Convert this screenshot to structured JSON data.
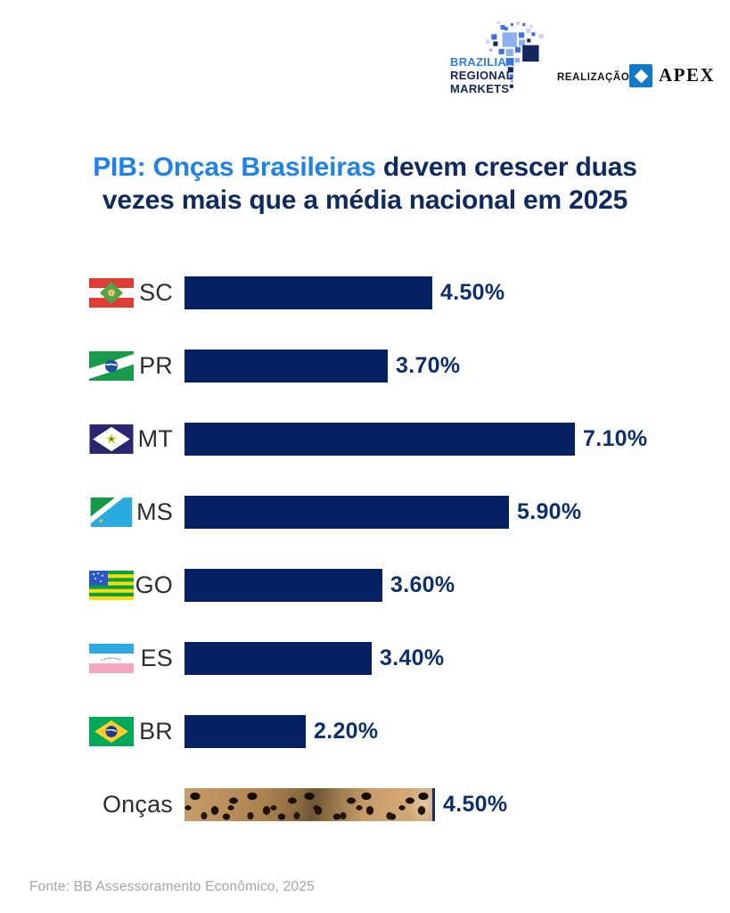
{
  "header": {
    "brand": {
      "line1": "BRAZILIAN",
      "line2": "REGIONAL",
      "line3": "MARKETS"
    },
    "realization_label": "REALIZAÇÃO",
    "apex_label": "APEX"
  },
  "title": {
    "highlight": "PIB: Onças Brasileiras",
    "rest": " devem crescer duas vezes mais que a média nacional em 2025"
  },
  "chart_data": {
    "type": "bar",
    "orientation": "horizontal",
    "unit": "%",
    "xlim": [
      0,
      7.5
    ],
    "grid": false,
    "bar_color": "#062163",
    "categories": [
      "SC",
      "PR",
      "MT",
      "MS",
      "GO",
      "ES",
      "BR",
      "Onças"
    ],
    "values": [
      4.5,
      3.7,
      7.1,
      5.9,
      3.6,
      3.4,
      2.2,
      4.5
    ],
    "rows": [
      {
        "label": "SC",
        "value": 4.5,
        "value_label": "4.50%",
        "flag": "santa-catarina"
      },
      {
        "label": "PR",
        "value": 3.7,
        "value_label": "3.70%",
        "flag": "parana"
      },
      {
        "label": "MT",
        "value": 7.1,
        "value_label": "7.10%",
        "flag": "mato-grosso"
      },
      {
        "label": "MS",
        "value": 5.9,
        "value_label": "5.90%",
        "flag": "mato-grosso-do-sul"
      },
      {
        "label": "GO",
        "value": 3.6,
        "value_label": "3.60%",
        "flag": "goias"
      },
      {
        "label": "ES",
        "value": 3.4,
        "value_label": "3.40%",
        "flag": "espirito-santo"
      },
      {
        "label": "BR",
        "value": 2.2,
        "value_label": "2.20%",
        "flag": "brazil"
      },
      {
        "label": "Onças",
        "value": 4.5,
        "value_label": "4.50%",
        "flag": null,
        "pattern": "jaguar-fur"
      }
    ]
  },
  "footer": {
    "source": "Fonte: BB Assessoramento Econômico, 2025"
  },
  "colors": {
    "title_highlight": "#1E82E8",
    "title_main": "#0E2A60",
    "bar": "#062163",
    "value_text": "#0C2F6E",
    "apex_blue": "#1079C8",
    "brand_blue": "#2E7EE4",
    "brand_navy": "#13265C"
  }
}
